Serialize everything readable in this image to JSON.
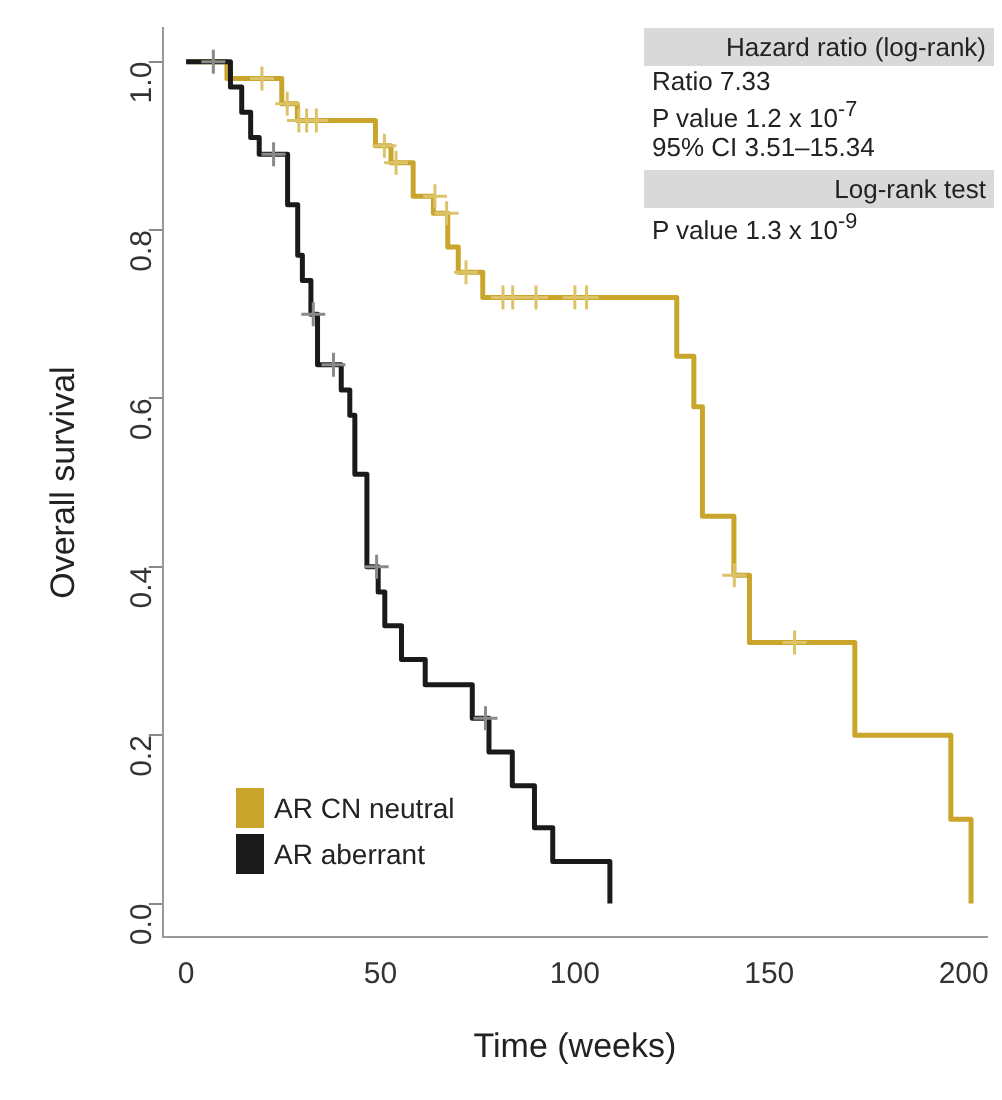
{
  "chart_data": {
    "type": "step",
    "xlabel": "Time (weeks)",
    "ylabel": "Overall survival",
    "xlim": [
      -6,
      206
    ],
    "ylim": [
      -0.04,
      1.04
    ],
    "xticks": [
      0,
      50,
      100,
      150,
      200
    ],
    "yticks": [
      {
        "value": 0,
        "label": "0.0"
      },
      {
        "value": 0.2,
        "label": "0.2"
      },
      {
        "value": 0.4,
        "label": "0.4"
      },
      {
        "value": 0.6,
        "label": "0.6"
      },
      {
        "value": 0.8,
        "label": "0.8"
      },
      {
        "value": 1,
        "label": "1.0"
      }
    ],
    "grid": false,
    "legend": "bottom left",
    "line_style": "solid",
    "annotations": [
      "Hazard ratio (log-rank)",
      "Ratio 7.33",
      "P value 1.2 x 10$^{-7}$",
      "95% CI 3.51–15.34",
      "Log-rank test",
      "P value 1.3 x 10$^{-9}$"
    ],
    "series": [
      {
        "name": "AR CN neutral",
        "color": "#c9a52b",
        "x": [
          0,
          10.5,
          24.6,
          28.6,
          48.7,
          52.7,
          58.4,
          63.6,
          67.3,
          70,
          76.3,
          126.2,
          130.6,
          132.8,
          140.9,
          144.9,
          172,
          196.7,
          201.9
        ],
        "values": [
          1,
          0.98,
          0.95,
          0.93,
          0.9,
          0.88,
          0.84,
          0.82,
          0.78,
          0.75,
          0.72,
          0.65,
          0.59,
          0.46,
          0.39,
          0.31,
          0.2,
          0.1,
          0
        ]
      },
      {
        "name": "AR aberrant",
        "color": "#1a1a1a",
        "x": [
          0,
          11.4,
          14.3,
          16.6,
          18.8,
          26.1,
          28.7,
          29.9,
          32.1,
          33.8,
          39.9,
          42.1,
          43.4,
          46.5,
          49.4,
          51.1,
          55.4,
          61.5,
          73.6,
          77.9,
          83.9,
          89.6,
          94.3,
          109
        ],
        "values": [
          1,
          0.97,
          0.94,
          0.91,
          0.89,
          0.83,
          0.77,
          0.74,
          0.7,
          0.64,
          0.61,
          0.58,
          0.51,
          0.4,
          0.37,
          0.33,
          0.29,
          0.26,
          0.22,
          0.18,
          0.14,
          0.09,
          0.05,
          0
        ]
      },
      {
        "type": "scatter",
        "marker": "cross",
        "color": "#dcc36a",
        "x": [
          19.5,
          26,
          29,
          31,
          33.5,
          51,
          54,
          64,
          67,
          72,
          81.5,
          84,
          90,
          100,
          103,
          141,
          156.5
        ],
        "values": [
          0.98,
          0.95,
          0.93,
          0.93,
          0.93,
          0.9,
          0.88,
          0.84,
          0.82,
          0.75,
          0.72,
          0.72,
          0.72,
          0.72,
          0.72,
          0.39,
          0.31
        ]
      },
      {
        "type": "scatter",
        "marker": "cross",
        "color": "#8a8a8a",
        "x": [
          7,
          22.5,
          32.7,
          37.9,
          49,
          77
        ],
        "values": [
          1,
          0.89,
          0.7,
          0.64,
          0.4,
          0.22
        ]
      }
    ]
  }
}
